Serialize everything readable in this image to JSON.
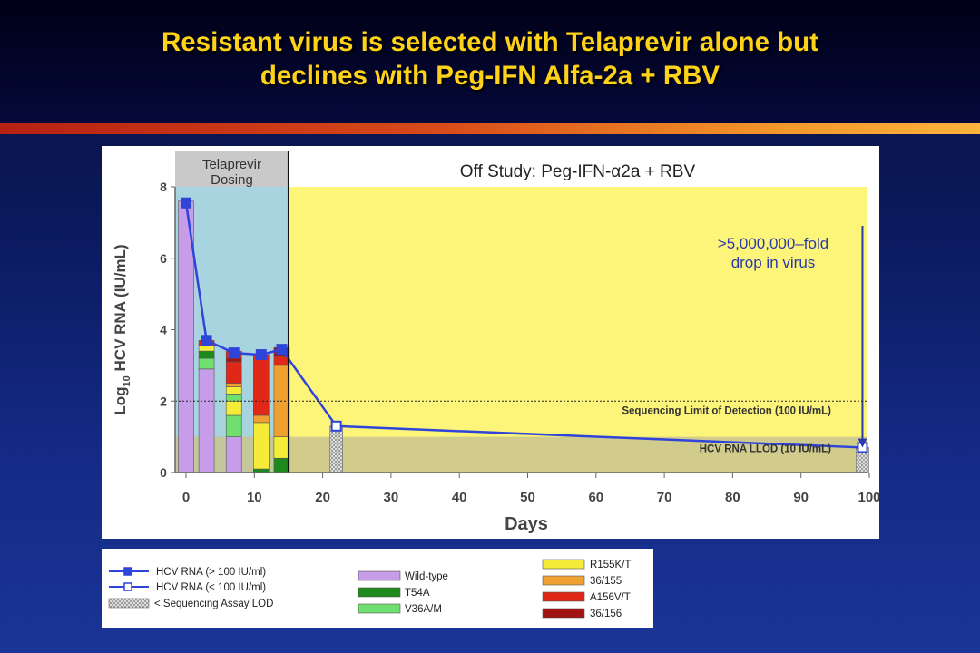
{
  "slide": {
    "title": "Resistant virus is selected with Telaprevir alone but\ndeclines with Peg-IFN Alfa-2a + RBV"
  },
  "colors": {
    "title": "#ffd21a",
    "dosing_bg": "#a8d4e0",
    "offstudy_bg": "#fdf57a",
    "lod_band": "#c9c48e",
    "rna_line": "#2f44d8"
  },
  "chart_data": {
    "type": "bar",
    "ylabel": "Log10 HCV RNA (IU/mL)",
    "ylabel_prefix": "Log",
    "ylabel_sub": "10",
    "ylabel_rest": " HCV RNA (IU/mL)",
    "xlabel": "Days",
    "xlim": [
      0,
      100
    ],
    "ylim": [
      0,
      8
    ],
    "x_ticks": [
      "0",
      "10",
      "20",
      "30",
      "40",
      "50",
      "60",
      "70",
      "80",
      "90",
      "100"
    ],
    "y_ticks": [
      "0",
      "2",
      "4",
      "6",
      "8"
    ],
    "regions": [
      {
        "label_line1": "Telaprevir",
        "label_line2": "Dosing",
        "x_start": 0,
        "x_end": 15
      },
      {
        "label": "Off Study: Peg-IFN-α2a + RBV",
        "x_start": 15,
        "x_end": 100
      }
    ],
    "reference_lines": [
      {
        "label": "Sequencing Limit of Detection (100 IU/mL)",
        "y": 2.0
      },
      {
        "label": "HCV RNA LLOD (10 IU/mL)",
        "y": 1.0
      }
    ],
    "annotation": {
      "line1": ">5,000,000–fold",
      "line2": "drop in virus"
    },
    "stacked_bars": [
      {
        "day": 0,
        "segments": [
          {
            "variant": "Wild-type",
            "from": 0,
            "to": 7.6
          }
        ]
      },
      {
        "day": 3,
        "segments": [
          {
            "variant": "Wild-type",
            "from": 0,
            "to": 2.9
          },
          {
            "variant": "V36A/M",
            "from": 2.9,
            "to": 3.2
          },
          {
            "variant": "T54A",
            "from": 3.2,
            "to": 3.4
          },
          {
            "variant": "R155K/T",
            "from": 3.4,
            "to": 3.55
          },
          {
            "variant": "A156V/T",
            "from": 3.55,
            "to": 3.7
          }
        ]
      },
      {
        "day": 7,
        "segments": [
          {
            "variant": "Wild-type",
            "from": 0,
            "to": 1.0
          },
          {
            "variant": "V36A/M",
            "from": 1.0,
            "to": 1.6
          },
          {
            "variant": "R155K/T",
            "from": 1.6,
            "to": 2.0
          },
          {
            "variant": "V36A/M",
            "from": 2.0,
            "to": 2.2
          },
          {
            "variant": "R155K/T",
            "from": 2.2,
            "to": 2.4
          },
          {
            "variant": "36/155",
            "from": 2.4,
            "to": 2.5
          },
          {
            "variant": "A156V/T",
            "from": 2.5,
            "to": 3.1
          },
          {
            "variant": "36/156",
            "from": 3.1,
            "to": 3.2
          },
          {
            "variant": "A156V/T",
            "from": 3.2,
            "to": 3.4
          }
        ]
      },
      {
        "day": 11,
        "segments": [
          {
            "variant": "T54A",
            "from": 0,
            "to": 0.1
          },
          {
            "variant": "R155K/T",
            "from": 0.1,
            "to": 1.4
          },
          {
            "variant": "36/155",
            "from": 1.4,
            "to": 1.6
          },
          {
            "variant": "A156V/T",
            "from": 1.6,
            "to": 3.3
          }
        ]
      },
      {
        "day": 14,
        "segments": [
          {
            "variant": "T54A",
            "from": 0,
            "to": 0.4
          },
          {
            "variant": "R155K/T",
            "from": 0.4,
            "to": 1.0
          },
          {
            "variant": "36/155",
            "from": 1.0,
            "to": 3.0
          },
          {
            "variant": "A156V/T",
            "from": 3.0,
            "to": 3.25
          },
          {
            "variant": "36/156",
            "from": 3.25,
            "to": 3.5
          }
        ]
      }
    ],
    "lod_bars": [
      {
        "day": 22,
        "value": 1.3
      },
      {
        "day": 99,
        "value": 0.7
      }
    ],
    "series": [
      {
        "name": "HCV RNA (> 100 IU/ml)",
        "marker": "filled-square",
        "x": [
          0,
          3,
          7,
          11,
          14
        ],
        "y": [
          7.55,
          3.7,
          3.35,
          3.3,
          3.45
        ]
      },
      {
        "name": "HCV RNA (< 100 IU/ml)",
        "marker": "open-square",
        "x": [
          22,
          99
        ],
        "y": [
          1.3,
          0.7
        ]
      }
    ],
    "variant_colors": {
      "Wild-type": "#c79ce8",
      "T54A": "#1e8a1e",
      "V36A/M": "#6fe06f",
      "R155K/T": "#f5ec3a",
      "36/155": "#f0a030",
      "A156V/T": "#e02818",
      "36/156": "#a01414"
    },
    "legend": {
      "lines": [
        {
          "label": "HCV RNA (> 100 IU/ml)",
          "kind": "filled"
        },
        {
          "label": "HCV RNA (< 100 IU/ml)",
          "kind": "open"
        },
        {
          "label": "< Sequencing Assay LOD",
          "kind": "hatched"
        }
      ],
      "variants_col1": [
        "Wild-type",
        "T54A",
        "V36A/M"
      ],
      "variants_col2": [
        "R155K/T",
        "36/155",
        "A156V/T",
        "36/156"
      ]
    }
  }
}
